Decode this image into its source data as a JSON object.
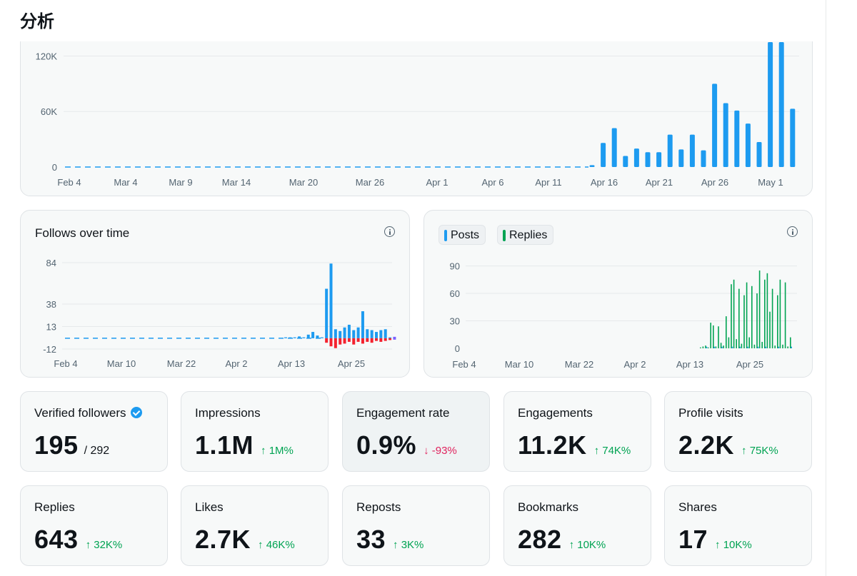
{
  "header": {
    "title": "分析"
  },
  "impressions_chart": {
    "type": "bar",
    "y_ticks": [
      "120K",
      "60K",
      "0"
    ],
    "x_labels": [
      "Feb 4",
      "Mar 4",
      "Mar 9",
      "Mar 14",
      "Mar 20",
      "Mar 26",
      "Apr 1",
      "Apr 6",
      "Apr 11",
      "Apr 16",
      "Apr 21",
      "Apr 26",
      "May 1"
    ],
    "ylim": [
      0,
      135000
    ],
    "bars": [
      {
        "date": "Apr 15",
        "value": 2000
      },
      {
        "date": "Apr 16",
        "value": 26000
      },
      {
        "date": "Apr 17",
        "value": 42000
      },
      {
        "date": "Apr 18",
        "value": 12000
      },
      {
        "date": "Apr 19",
        "value": 20000
      },
      {
        "date": "Apr 20",
        "value": 16000
      },
      {
        "date": "Apr 21",
        "value": 16000
      },
      {
        "date": "Apr 22",
        "value": 35000
      },
      {
        "date": "Apr 23",
        "value": 19000
      },
      {
        "date": "Apr 24",
        "value": 35000
      },
      {
        "date": "Apr 25",
        "value": 18000
      },
      {
        "date": "Apr 26",
        "value": 90000
      },
      {
        "date": "Apr 27",
        "value": 69000
      },
      {
        "date": "Apr 28",
        "value": 61000
      },
      {
        "date": "Apr 29",
        "value": 47000
      },
      {
        "date": "Apr 30",
        "value": 27000
      },
      {
        "date": "May 1",
        "value": 135000
      },
      {
        "date": "May 2",
        "value": 135000
      },
      {
        "date": "May 3",
        "value": 63000
      }
    ]
  },
  "follows_chart": {
    "title": "Follows over time",
    "info_icon": "info-icon",
    "y_ticks": [
      "84",
      "38",
      "13",
      "-12"
    ],
    "x_labels": [
      "Feb 4",
      "Mar 10",
      "Mar 22",
      "Apr 2",
      "Apr 13",
      "Apr 25"
    ],
    "ylim": [
      -12,
      84
    ],
    "follows": [
      1,
      1,
      1,
      2,
      1,
      4,
      7,
      3,
      1,
      55,
      83,
      10,
      8,
      12,
      15,
      9,
      12,
      30,
      10,
      9,
      7,
      9,
      10,
      1
    ],
    "unfollows": [
      0,
      0,
      0,
      0,
      0,
      0,
      0,
      0,
      0,
      -5,
      -9,
      -11,
      -7,
      -6,
      -4,
      -7,
      -4,
      -6,
      -4,
      -5,
      -3,
      -4,
      -3,
      -2
    ]
  },
  "posts_chart": {
    "legend": [
      {
        "label": "Posts",
        "color": "#1d9bf0"
      },
      {
        "label": "Replies",
        "color": "#00a352"
      }
    ],
    "info_icon": "info-icon",
    "y_ticks": [
      "90",
      "60",
      "30",
      "0"
    ],
    "x_labels": [
      "Feb 4",
      "Mar 10",
      "Mar 22",
      "Apr 2",
      "Apr 13",
      "Apr 25"
    ],
    "ylim": [
      0,
      95
    ],
    "posts": [
      0,
      0,
      1,
      0,
      0,
      1,
      0,
      0,
      1,
      0,
      0,
      0,
      1,
      0,
      0,
      1,
      0,
      0,
      1,
      0,
      0,
      0,
      1,
      0,
      0,
      1,
      0,
      0,
      0,
      0,
      1,
      0,
      0,
      0,
      0,
      1
    ],
    "replies": [
      1,
      2,
      3,
      1,
      28,
      25,
      2,
      24,
      6,
      3,
      35,
      12,
      70,
      75,
      10,
      65,
      5,
      58,
      72,
      12,
      68,
      4,
      60,
      85,
      7,
      75,
      82,
      40,
      65,
      3,
      58,
      75,
      4,
      72,
      2,
      12
    ]
  },
  "stats_row1": [
    {
      "label": "Verified followers",
      "value": "195",
      "sub": "/ 292",
      "badge": true
    },
    {
      "label": "Impressions",
      "value": "1.1M",
      "change": "↑ 1M%",
      "dir": "up"
    },
    {
      "label": "Engagement rate",
      "value": "0.9%",
      "change": "↓ -93%",
      "dir": "down"
    },
    {
      "label": "Engagements",
      "value": "11.2K",
      "change": "↑ 74K%",
      "dir": "up"
    },
    {
      "label": "Profile visits",
      "value": "2.2K",
      "change": "↑ 75K%",
      "dir": "up"
    }
  ],
  "stats_row2": [
    {
      "label": "Replies",
      "value": "643",
      "change": "↑ 32K%",
      "dir": "up"
    },
    {
      "label": "Likes",
      "value": "2.7K",
      "change": "↑ 46K%",
      "dir": "up"
    },
    {
      "label": "Reposts",
      "value": "33",
      "change": "↑ 3K%",
      "dir": "up"
    },
    {
      "label": "Bookmarks",
      "value": "282",
      "change": "↑ 10K%",
      "dir": "up"
    },
    {
      "label": "Shares",
      "value": "17",
      "change": "↑ 10K%",
      "dir": "up"
    }
  ],
  "colors": {
    "blue": "#1d9bf0",
    "green": "#00a352",
    "red": "#f4212e",
    "purple": "#7b61ff"
  }
}
